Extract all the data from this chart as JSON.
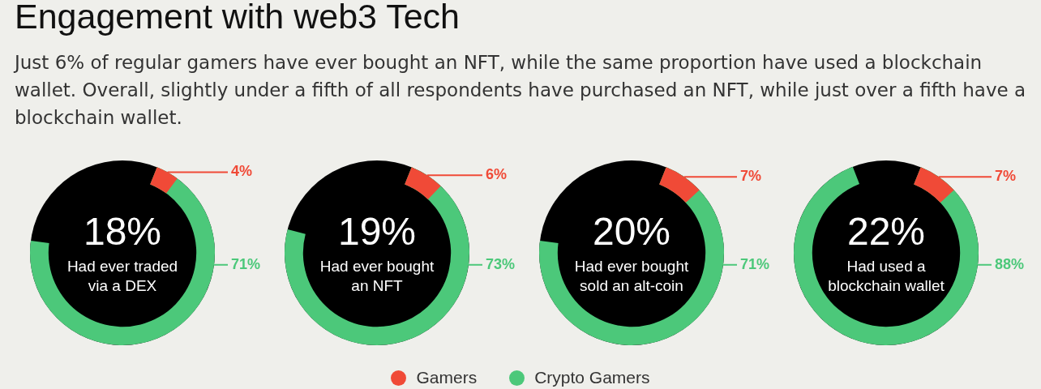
{
  "chart_data": {
    "type": "other",
    "title": "Engagement with web3 Tech",
    "subtitle": "Just 6% of regular gamers have ever bought an NFT, while the same proportion have used a blockchain wallet. Overall, slightly under a fifth of all respondents have purchased an NFT, while just over a fifth have a blockchain wallet.",
    "categories": [
      "Had ever traded via a DEX",
      "Had ever bought an NFT",
      "Had ever bought sold an alt-coin",
      "Had used a blockchain wallet"
    ],
    "series": [
      {
        "name": "Gamers",
        "color": "#f04a37",
        "values": [
          4,
          6,
          7,
          7
        ],
        "value_labels": [
          "4%",
          "6%",
          "7%",
          "7%"
        ]
      },
      {
        "name": "Crypto Gamers",
        "color": "#4cc87a",
        "values": [
          71,
          73,
          71,
          88
        ],
        "value_labels": [
          "71%",
          "73%",
          "71%",
          "88%"
        ]
      }
    ],
    "annotations": [
      "18%",
      "19%",
      "20%",
      "22%"
    ],
    "legend": "bottom"
  }
}
